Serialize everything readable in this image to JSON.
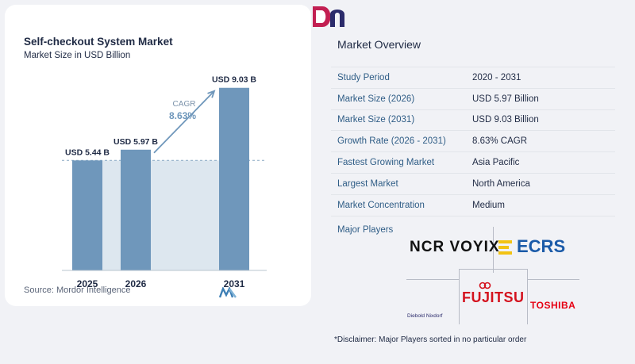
{
  "chart_data": {
    "type": "bar",
    "title": "Self-checkout System Market",
    "subtitle": "Market Size in USD Billion",
    "categories": [
      "2025",
      "2026",
      "2031"
    ],
    "values": [
      5.44,
      5.97,
      9.03
    ],
    "value_labels": [
      "USD 5.44 B",
      "USD 5.97 B",
      "USD 9.03 B"
    ],
    "cagr_label": "CAGR",
    "cagr_value": "8.63%",
    "ylim": [
      0,
      10
    ],
    "grid": false,
    "colors": {
      "bar": "#6f97bb",
      "shade": "#dde7ef",
      "arrow": "#6f97bb",
      "cagr": "#6f97bb"
    }
  },
  "source": "Source:  Mordor Intelligence",
  "overview": {
    "title": "Market Overview",
    "rows": [
      {
        "key": "Study Period",
        "value": "2020 - 2031"
      },
      {
        "key": "Market Size (2026)",
        "value": "USD 5.97 Billion"
      },
      {
        "key": "Market Size (2031)",
        "value": "USD 9.03 Billion"
      },
      {
        "key": "Growth Rate (2026 - 2031)",
        "value": "8.63% CAGR"
      },
      {
        "key": "Fastest Growing Market",
        "value": "Asia Pacific"
      },
      {
        "key": "Largest Market",
        "value": "North America"
      },
      {
        "key": "Market Concentration",
        "value": "Medium"
      }
    ]
  },
  "players": {
    "title": "Major Players",
    "logos": {
      "ncr": "NCR VOYIX",
      "ecrs": "ECRS",
      "diebold": "Diebold Nixdorf",
      "fujitsu": "FUJITSU",
      "toshiba": "TOSHIBA"
    }
  },
  "disclaimer": "*Disclaimer: Major Players sorted in no particular order"
}
